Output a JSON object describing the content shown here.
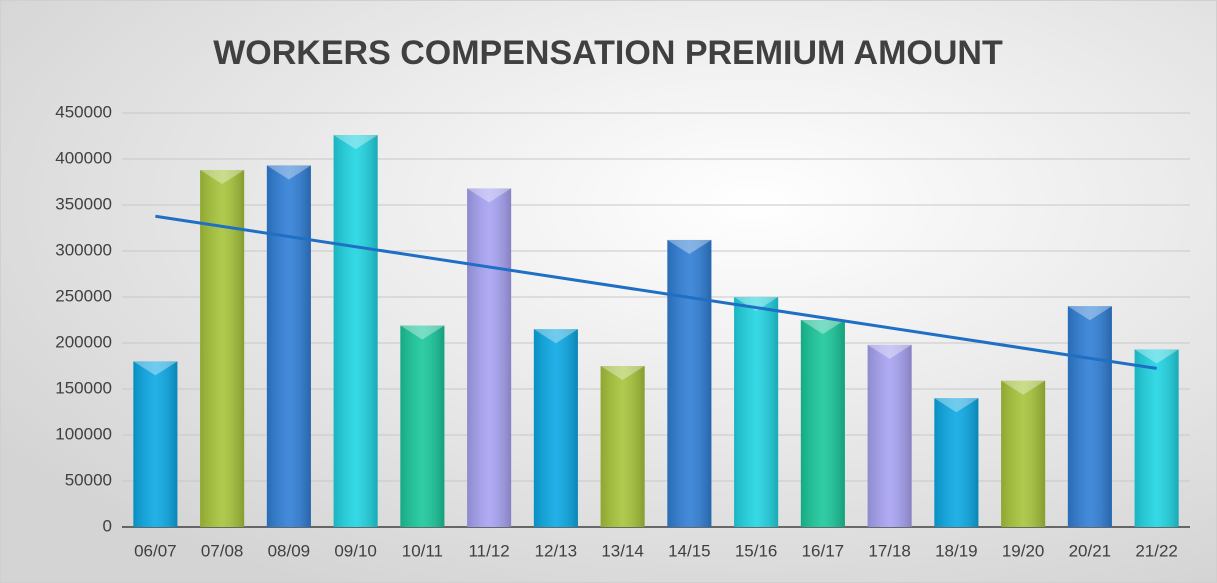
{
  "chart_data": {
    "type": "bar",
    "title": "WORKERS COMPENSATION PREMIUM AMOUNT",
    "categories": [
      "06/07",
      "07/08",
      "08/09",
      "09/10",
      "10/11",
      "11/12",
      "12/13",
      "13/14",
      "14/15",
      "15/16",
      "16/17",
      "17/18",
      "18/19",
      "19/20",
      "20/21",
      "21/22"
    ],
    "values": [
      180000,
      388000,
      393000,
      426000,
      219000,
      368000,
      215000,
      175000,
      312000,
      250000,
      225000,
      198000,
      140000,
      159000,
      240000,
      193000
    ],
    "colors": [
      "#0aa8e4",
      "#a6c43a",
      "#2f7ed6",
      "#1fd4e2",
      "#19c79a",
      "#a7a2f2",
      "#0aa8e4",
      "#a6c43a",
      "#2f7ed6",
      "#1fd4e2",
      "#19c79a",
      "#a7a2f2",
      "#0aa8e4",
      "#a6c43a",
      "#2f7ed6",
      "#1fd4e2"
    ],
    "ylim": [
      0,
      450000
    ],
    "yticks": [
      0,
      50000,
      100000,
      150000,
      200000,
      250000,
      300000,
      350000,
      400000,
      450000
    ],
    "grid": true,
    "trendline": {
      "type": "linear",
      "color": "#1f6fc4"
    }
  }
}
